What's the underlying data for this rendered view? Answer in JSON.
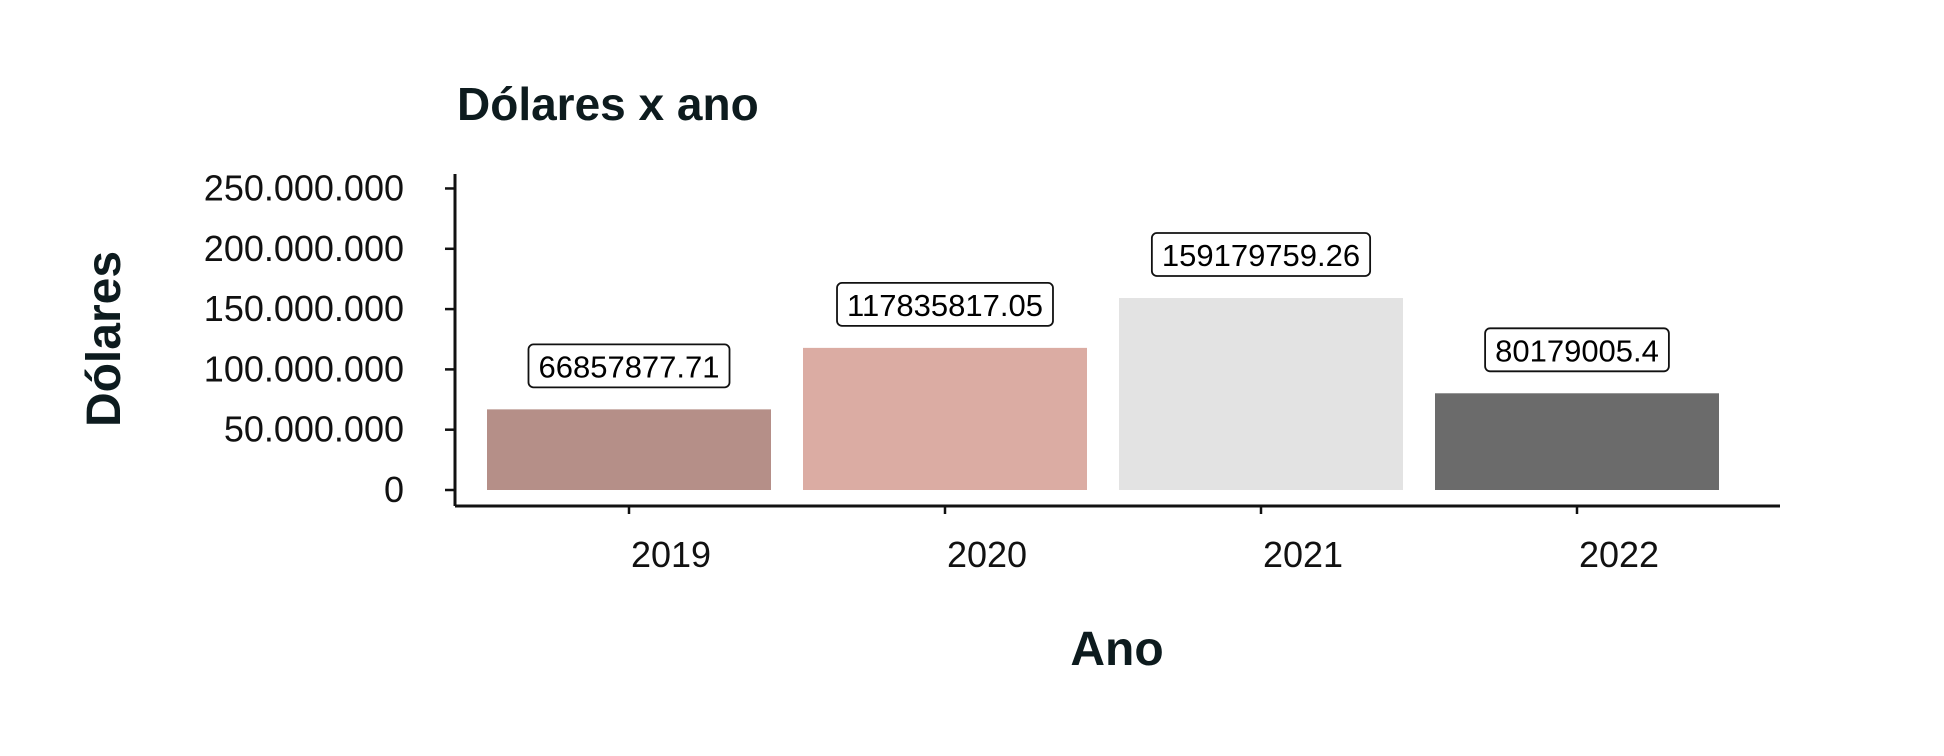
{
  "chart_data": {
    "type": "bar",
    "title": "Dólares x ano",
    "xlabel": "Ano",
    "ylabel": "Dólares",
    "categories": [
      "2019",
      "2020",
      "2021",
      "2022"
    ],
    "values": [
      66857877.71,
      117835817.05,
      159179759.26,
      80179005.4
    ],
    "value_labels": [
      "66857877.71",
      "117835817.05",
      "159179759.26",
      "80179005.4"
    ],
    "colors": [
      "#b58f88",
      "#dbaca3",
      "#e3e3e3",
      "#6b6b6b"
    ],
    "ylim": [
      0,
      262000000
    ],
    "yticks": [
      0,
      50000000,
      100000000,
      150000000,
      200000000,
      250000000
    ],
    "ytick_labels": [
      "0",
      "50.000.000",
      "100.000.000",
      "150.000.000",
      "200.000.000",
      "250.000.000"
    ],
    "grid": false,
    "legend": "none"
  }
}
